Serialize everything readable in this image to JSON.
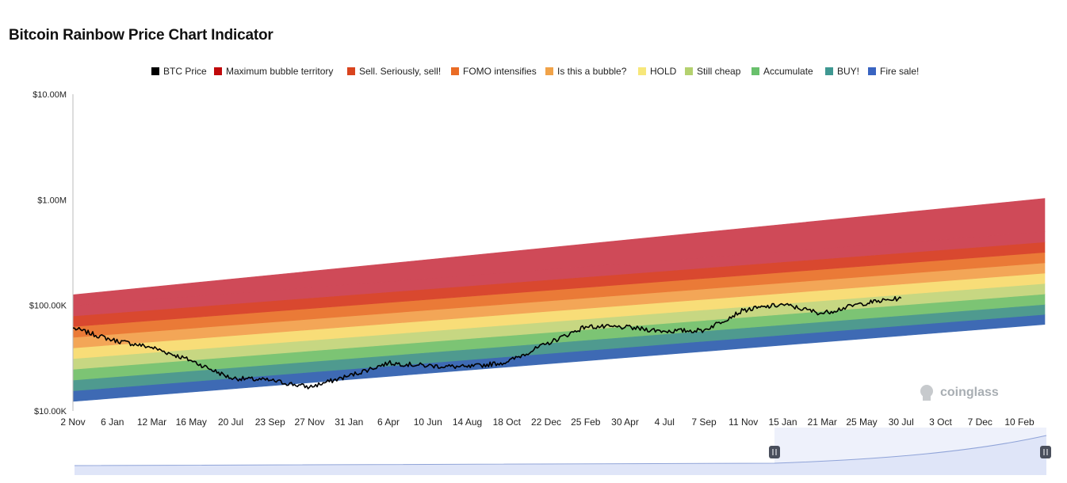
{
  "title": "Bitcoin Rainbow Price Chart Indicator",
  "watermark": "coinglass",
  "legend": [
    {
      "label": "BTC Price",
      "color": "#000000"
    },
    {
      "label": "Maximum bubble territory",
      "color": "#c0090b"
    },
    {
      "label": "Sell. Seriously, sell!",
      "color": "#d9441e"
    },
    {
      "label": "FOMO intensifies",
      "color": "#ea6c25"
    },
    {
      "label": "Is this a bubble?",
      "color": "#f1a349"
    },
    {
      "label": "HOLD",
      "color": "#f7e77a"
    },
    {
      "label": "Still cheap",
      "color": "#b4d16f"
    },
    {
      "label": "Accumulate",
      "color": "#69c06c"
    },
    {
      "label": "BUY!",
      "color": "#3f9892"
    },
    {
      "label": "Fire sale!",
      "color": "#3964c1"
    }
  ],
  "chart_data": {
    "type": "area",
    "title": "Bitcoin Rainbow Price Chart Indicator",
    "y_scale": "log",
    "ylim": [
      10000,
      10000000
    ],
    "y_ticks": [
      "$10.00K",
      "$100.00K",
      "$1.00M",
      "$10.00M"
    ],
    "x_ticks": [
      "2 Nov",
      "6 Jan",
      "12 Mar",
      "16 May",
      "20 Jul",
      "23 Sep",
      "27 Nov",
      "31 Jan",
      "6 Apr",
      "10 Jun",
      "14 Aug",
      "18 Oct",
      "22 Dec",
      "25 Feb",
      "30 Apr",
      "4 Jul",
      "7 Sep",
      "11 Nov",
      "15 Jan",
      "21 Mar",
      "25 May",
      "30 Jul",
      "3 Oct",
      "7 Dec",
      "10 Feb"
    ],
    "bands": {
      "series": [
        "Fire sale!",
        "BUY!",
        "Accumulate",
        "Still cheap",
        "HOLD",
        "Is this a bubble?",
        "FOMO intensifies",
        "Sell. Seriously, sell!",
        "Maximum bubble territory"
      ],
      "x": [
        "2 Nov",
        "10 Feb"
      ],
      "boundaries": [
        [
          12300,
          66000
        ],
        [
          15500,
          82000
        ],
        [
          19600,
          102000
        ],
        [
          24800,
          128000
        ],
        [
          31300,
          161000
        ],
        [
          39500,
          202000
        ],
        [
          49800,
          253000
        ],
        [
          62900,
          318000
        ],
        [
          79300,
          398000
        ],
        [
          100000,
          500000
        ],
        [
          126000,
          1030000
        ]
      ]
    },
    "series": [
      {
        "name": "BTC Price",
        "x": [
          "2 Nov",
          "6 Jan",
          "12 Mar",
          "16 May",
          "20 Jul",
          "23 Sep",
          "27 Nov",
          "31 Jan",
          "6 Apr",
          "10 Jun",
          "14 Aug",
          "18 Oct",
          "22 Dec",
          "25 Feb",
          "30 Apr",
          "4 Jul",
          "7 Sep",
          "11 Nov",
          "15 Jan",
          "21 Mar",
          "25 May",
          "30 Jul"
        ],
        "values": [
          61000,
          47000,
          40000,
          30000,
          20500,
          19500,
          16800,
          21500,
          28500,
          26800,
          26000,
          29000,
          43000,
          63000,
          62000,
          57000,
          58000,
          90000,
          102000,
          84000,
          104000,
          117000
        ]
      }
    ]
  }
}
